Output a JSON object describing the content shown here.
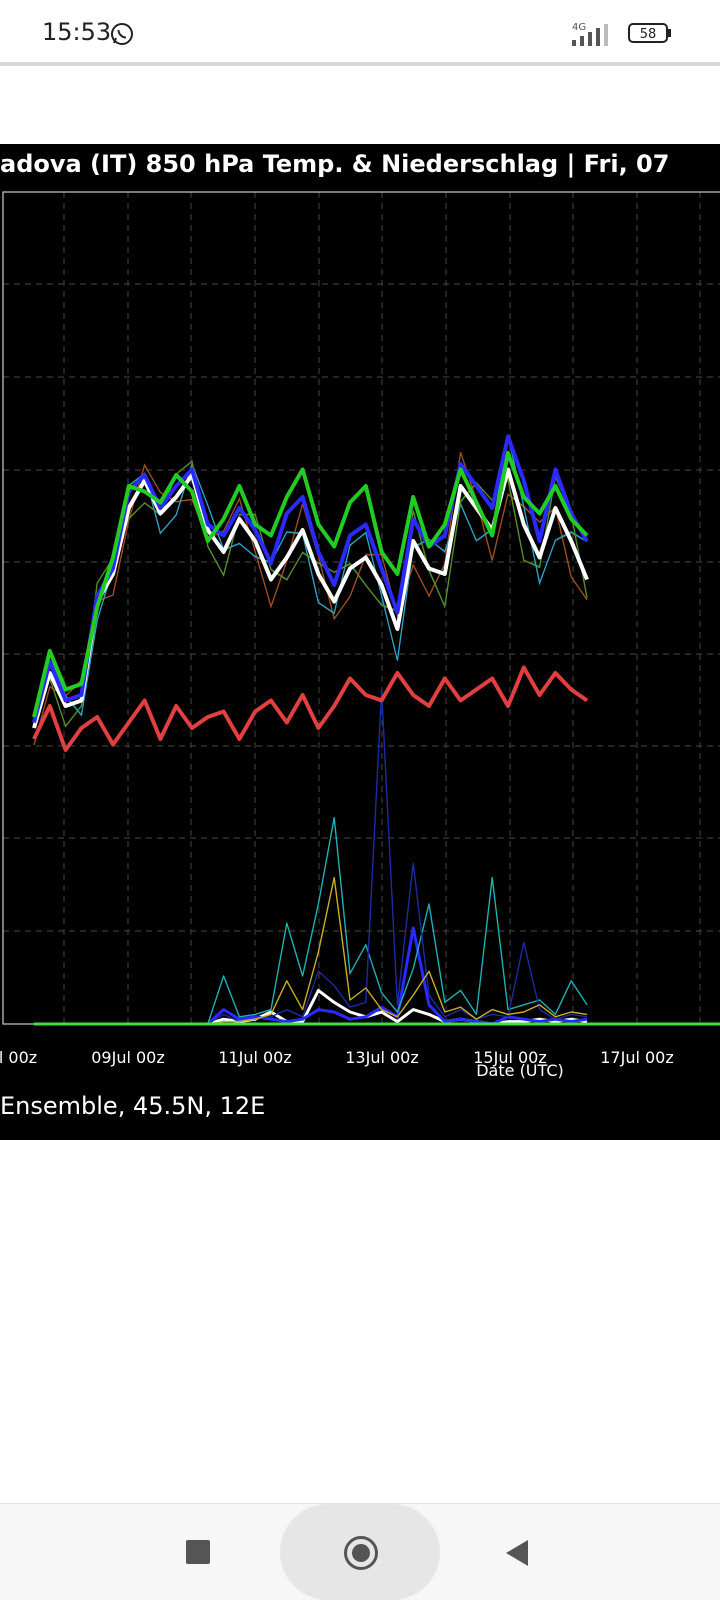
{
  "status": {
    "time": "15:53",
    "network": "4G",
    "battery": "58"
  },
  "chart_data": {
    "type": "line",
    "title": "adova  (IT)  850 hPa Temp. & Niederschlag | Fri, 07",
    "xlabel": "Date (UTC)",
    "ylabel": "",
    "footnote": "Ensemble, 45.5N, 12E",
    "x_ticks": [
      "l 00z",
      "09Jul 00z",
      "11Jul 00z",
      "13Jul 00z",
      "15Jul 00z",
      "17Jul 00z"
    ],
    "grid": true,
    "colors": {
      "control": "#2a2aff",
      "mean": "#ffffff",
      "operational": "#22cc22",
      "climate": "#e04040"
    },
    "series_temp": [
      {
        "name": "",
        "color": "#ffffff",
        "values": [
          1.2,
          2.2,
          1.6,
          1.7,
          3.5,
          4.0,
          5.2,
          5.7,
          5.1,
          5.4,
          5.8,
          4.8,
          4.4,
          5.0,
          4.6,
          3.9,
          4.3,
          4.8,
          4.0,
          3.5,
          4.1,
          4.3,
          3.8,
          3.0,
          4.6,
          4.1,
          4.0,
          5.6,
          5.2,
          4.8,
          5.9,
          4.9,
          4.3,
          5.2,
          4.6,
          3.9
        ]
      },
      {
        "name": "",
        "color": "#2a2aff",
        "values": [
          1.3,
          2.4,
          1.7,
          1.8,
          3.6,
          4.1,
          5.5,
          5.8,
          5.2,
          5.6,
          5.9,
          4.9,
          4.7,
          5.2,
          4.8,
          4.2,
          5.1,
          5.4,
          4.4,
          3.8,
          4.7,
          4.9,
          4.1,
          3.3,
          5.0,
          4.5,
          4.7,
          6.0,
          5.6,
          5.2,
          6.5,
          5.7,
          4.6,
          5.9,
          5.1,
          4.6
        ]
      },
      {
        "name": "",
        "color": "#22cc22",
        "values": [
          1.4,
          2.6,
          1.9,
          2.0,
          3.4,
          4.3,
          5.6,
          5.5,
          5.3,
          5.8,
          5.5,
          4.6,
          5.0,
          5.6,
          4.9,
          4.7,
          5.4,
          5.9,
          4.9,
          4.5,
          5.3,
          5.6,
          4.4,
          4.0,
          5.4,
          4.5,
          4.9,
          5.9,
          5.3,
          4.7,
          6.2,
          5.4,
          5.1,
          5.6,
          5.0,
          4.7
        ]
      },
      {
        "name": "",
        "color": "#e04040",
        "values": [
          1.0,
          1.6,
          0.8,
          1.2,
          1.4,
          0.9,
          1.3,
          1.7,
          1.0,
          1.6,
          1.2,
          1.4,
          1.5,
          1.0,
          1.5,
          1.7,
          1.3,
          1.8,
          1.2,
          1.6,
          2.1,
          1.8,
          1.7,
          2.2,
          1.8,
          1.6,
          2.1,
          1.7,
          1.9,
          2.1,
          1.6,
          2.3,
          1.8,
          2.2,
          1.9,
          1.7
        ]
      }
    ],
    "series_precip": [
      {
        "name": "",
        "color": "#ffffff",
        "values": [
          0,
          0,
          0,
          0,
          0,
          0,
          0,
          0,
          0,
          0,
          0,
          0,
          0.2,
          0.1,
          0.2,
          0.5,
          0.1,
          0.1,
          1.4,
          0.9,
          0.5,
          0.3,
          0.5,
          0.1,
          0.6,
          0.4,
          0.1,
          0.2,
          0.1,
          0,
          0.1,
          0.1,
          0.2,
          0.1,
          0.2,
          0.1
        ]
      },
      {
        "name": "",
        "color": "#2a2aff",
        "values": [
          0,
          0,
          0,
          0,
          0,
          0,
          0,
          0,
          0,
          0,
          0,
          0,
          0.6,
          0.2,
          0.3,
          0.2,
          0.1,
          0.2,
          0.6,
          0.5,
          0.2,
          0.3,
          0.7,
          0.3,
          4.0,
          0.8,
          0.1,
          0.2,
          0.1,
          0,
          0.3,
          0.2,
          0.1,
          0.2,
          0.1,
          0.2
        ]
      },
      {
        "name": "",
        "color": "#20b0b0",
        "values": [
          0,
          0,
          0,
          0,
          0,
          0,
          0,
          0,
          0,
          0,
          0,
          0,
          2.0,
          0.3,
          0.4,
          0.6,
          4.2,
          2.0,
          5.0,
          8.6,
          2.1,
          3.3,
          1.3,
          0.5,
          2.3,
          5.0,
          0.9,
          1.4,
          0.4,
          6.1,
          0.6,
          0.8,
          1.0,
          0.4,
          1.8,
          0.8
        ]
      },
      {
        "name": "",
        "color": "#1e2aa0",
        "values": [
          0,
          0,
          0,
          0,
          0,
          0,
          0,
          0,
          0,
          0,
          0,
          0,
          0.4,
          0.1,
          0.2,
          0.3,
          0.6,
          0.3,
          2.2,
          1.6,
          0.7,
          0.9,
          13.9,
          0.8,
          6.7,
          1.2,
          0.3,
          0.6,
          0.2,
          0.4,
          0.3,
          3.4,
          0.6,
          0.2,
          0.4,
          0.3
        ]
      },
      {
        "name": "",
        "color": "#c8b020",
        "values": [
          0,
          0,
          0,
          0,
          0,
          0,
          0,
          0,
          0,
          0,
          0,
          0,
          0.1,
          0.1,
          0.2,
          0.4,
          1.8,
          0.6,
          3.0,
          6.1,
          1.0,
          1.5,
          0.6,
          0.3,
          1.2,
          2.2,
          0.5,
          0.7,
          0.2,
          0.6,
          0.4,
          0.5,
          0.8,
          0.3,
          0.5,
          0.4
        ]
      }
    ]
  },
  "nav": {
    "recent": "square",
    "home": "circle",
    "back": "triangle"
  }
}
